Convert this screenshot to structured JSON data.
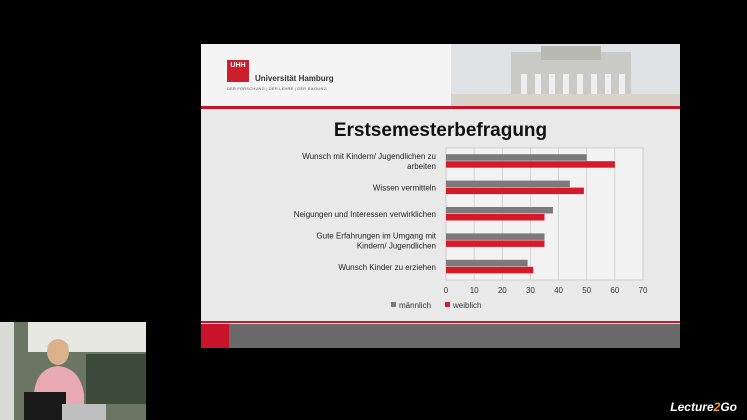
{
  "header": {
    "logo_text": "UHH",
    "university": "Universität Hamburg",
    "tagline": "DER FORSCHUNG | DER LEHRE | DER BILDUNG"
  },
  "slide_title": "Erstsemesterbefragung",
  "chart_data": {
    "type": "bar",
    "orientation": "horizontal",
    "title": "Erstsemesterbefragung",
    "categories": [
      "Wunsch mit Kindern/ Jugendlichen zu arbeiten",
      "Wissen vermitteln",
      "Neigungen und Interessen verwirklichen",
      "Gute Erfahrungen im Umgang mit Kindern/ Jugendlichen",
      "Wunsch Kinder zu erziehen"
    ],
    "category_lines": [
      [
        "Wunsch mit Kindern/ Jugendlichen zu",
        "arbeiten"
      ],
      [
        "Wissen vermitteln"
      ],
      [
        "Neigungen und Interessen verwirklichen"
      ],
      [
        "Gute Erfahrungen im Umgang mit",
        "Kindern/ Jugendlichen"
      ],
      [
        "Wunsch Kinder zu erziehen"
      ]
    ],
    "series": [
      {
        "name": "männlich",
        "color": "#7a7a7a",
        "values": [
          50,
          44,
          38,
          35,
          29
        ]
      },
      {
        "name": "weiblich",
        "color": "#d61a2a",
        "values": [
          60,
          49,
          35,
          35,
          31
        ]
      }
    ],
    "xlim": [
      0,
      70
    ],
    "xticks": [
      "0",
      "10",
      "20",
      "30",
      "40",
      "50",
      "60",
      "70"
    ],
    "grid": true,
    "legend": "bottom"
  },
  "brand": {
    "part1": "Lecture",
    "part2": "2",
    "part3": "Go"
  },
  "colors": {
    "accent": "#c8142a",
    "slide_bg": "#e9e9e9"
  }
}
